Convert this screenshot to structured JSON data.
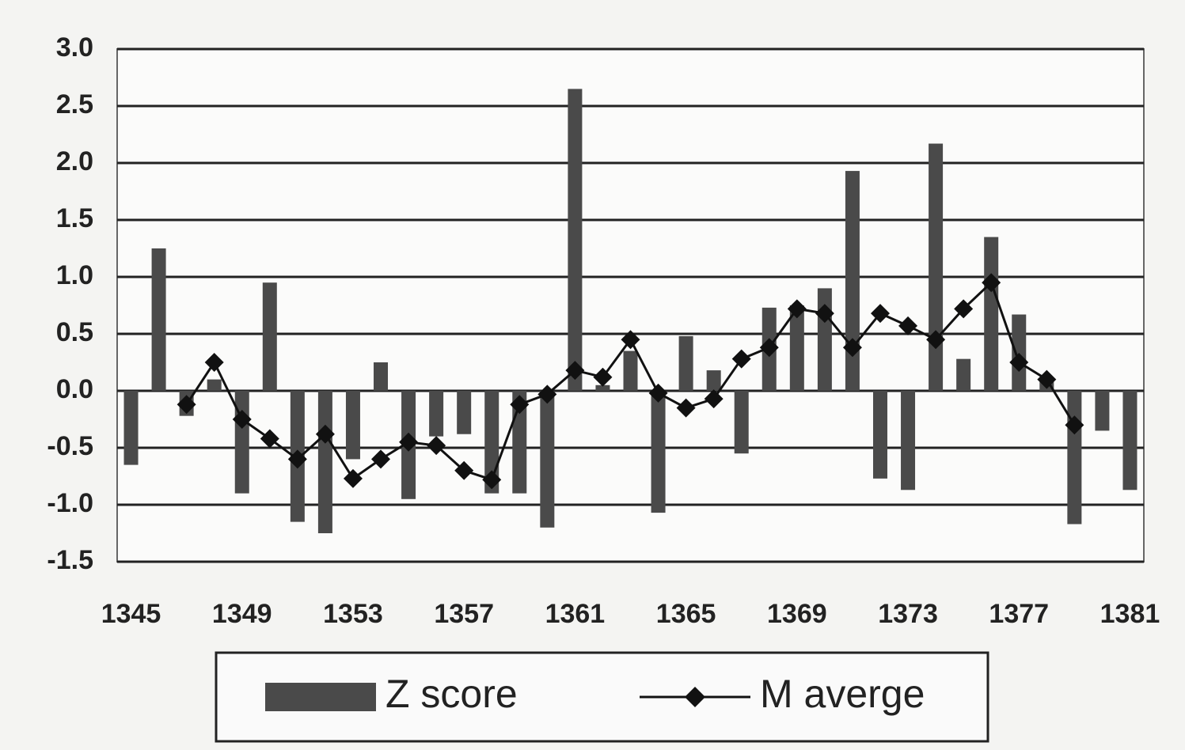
{
  "chart_data": {
    "type": "bar_line",
    "categories": [
      "1345",
      null,
      null,
      null,
      "1349",
      null,
      null,
      null,
      "1353",
      null,
      null,
      null,
      "1357",
      null,
      null,
      null,
      "1361",
      null,
      null,
      null,
      "1365",
      null,
      null,
      null,
      "1369",
      null,
      null,
      null,
      "1373",
      null,
      null,
      null,
      "1377",
      null,
      null,
      null,
      "1381"
    ],
    "series": [
      {
        "name": "Z score",
        "type": "bar",
        "color": "#4a4a4a",
        "values": [
          -0.65,
          1.25,
          -0.22,
          0.1,
          -0.9,
          0.95,
          -1.15,
          -1.25,
          -0.6,
          0.25,
          -0.95,
          -0.4,
          -0.38,
          -0.9,
          -0.9,
          -1.2,
          2.65,
          0.05,
          0.35,
          -1.07,
          0.48,
          0.18,
          -0.55,
          0.73,
          0.75,
          0.9,
          1.93,
          -0.77,
          -0.87,
          2.17,
          0.28,
          1.35,
          0.67,
          0.1,
          -1.17,
          -0.35,
          -0.87
        ]
      },
      {
        "name": "M averge",
        "type": "line",
        "color": "#111111",
        "values": [
          null,
          null,
          -0.12,
          0.25,
          -0.25,
          -0.42,
          -0.6,
          -0.38,
          -0.77,
          -0.6,
          -0.45,
          -0.48,
          -0.7,
          -0.78,
          -0.12,
          -0.03,
          0.18,
          0.12,
          0.45,
          -0.02,
          -0.15,
          -0.07,
          0.28,
          0.38,
          0.72,
          0.68,
          0.38,
          0.68,
          0.57,
          0.45,
          0.72,
          0.95,
          0.25,
          0.1,
          -0.3,
          null,
          null
        ]
      }
    ],
    "ylim": [
      -1.5,
      3.0
    ],
    "yticks": [
      {
        "value": -1.5,
        "label": "-1.5"
      },
      {
        "value": -1.0,
        "label": "-1.0"
      },
      {
        "value": -0.5,
        "label": "-0.5"
      },
      {
        "value": 0,
        "label": "0.0"
      },
      {
        "value": 0.5,
        "label": "0.5"
      },
      {
        "value": 1.0,
        "label": "1.0"
      },
      {
        "value": 1.5,
        "label": "1.5"
      },
      {
        "value": 2.0,
        "label": "2.0"
      },
      {
        "value": 2.5,
        "label": "2.5"
      },
      {
        "value": 3.0,
        "label": "3.0"
      }
    ],
    "grid": true,
    "legend": "bottom"
  }
}
